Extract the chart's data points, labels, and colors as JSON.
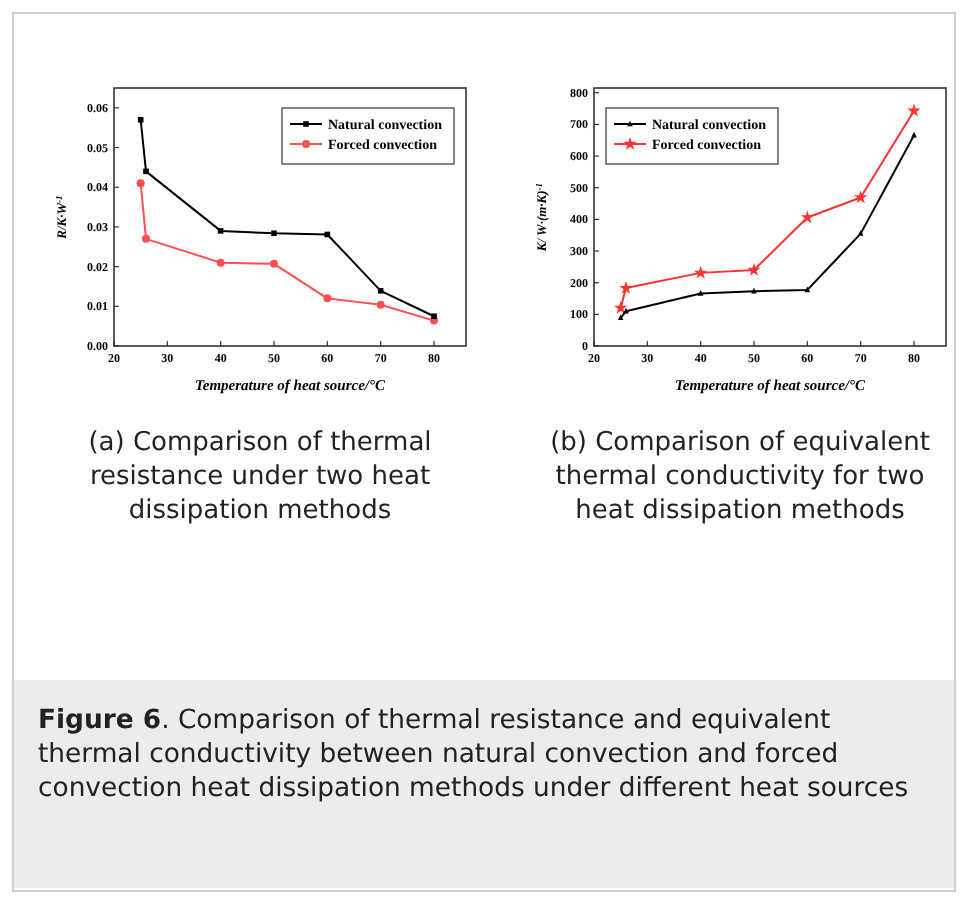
{
  "chart_data": [
    {
      "type": "line",
      "xlabel": "Temperature of heat source/°C",
      "ylabel": "R/K·W$^{-1}$",
      "x": [
        25,
        26,
        40,
        50,
        60,
        70,
        80
      ],
      "xlim": [
        20,
        86
      ],
      "xticks": [
        20,
        30,
        40,
        50,
        60,
        70,
        80
      ],
      "ylim": [
        0,
        0.065
      ],
      "yticks": [
        {
          "value": 0,
          "label": "0.00"
        },
        {
          "value": 0.01,
          "label": "0.01"
        },
        {
          "value": 0.02,
          "label": "0.02"
        },
        {
          "value": 0.03,
          "label": "0.03"
        },
        {
          "value": 0.04,
          "label": "0.04"
        },
        {
          "value": 0.05,
          "label": "0.05"
        },
        {
          "value": 0.06,
          "label": "0.06"
        }
      ],
      "legend": "top right",
      "grid": false,
      "series": [
        {
          "name": "Natural convection",
          "color": "#000000",
          "marker": "square",
          "values": [
            0.057,
            0.044,
            0.029,
            0.0284,
            0.0281,
            0.0139,
            0.0075
          ]
        },
        {
          "name": "Forced convection",
          "color": "#ff5050",
          "marker": "circle",
          "values": [
            0.041,
            0.027,
            0.021,
            0.0207,
            0.012,
            0.0104,
            0.0064
          ]
        }
      ],
      "annotations": [
        "(a) Comparison of thermal resistance under two heat dissipation methods"
      ]
    },
    {
      "type": "line",
      "xlabel": "Temperature of heat source/°C",
      "ylabel": "K/ W·(m·K)$^{-1}$",
      "x": [
        25,
        26,
        40,
        50,
        60,
        70,
        80
      ],
      "xlim": [
        20,
        86
      ],
      "xticks": [
        20,
        30,
        40,
        50,
        60,
        70,
        80
      ],
      "ylim": [
        0,
        815
      ],
      "yticks": [
        0,
        100,
        200,
        300,
        400,
        500,
        600,
        700,
        800
      ],
      "legend": "top left",
      "grid": false,
      "series": [
        {
          "name": "Natural convection",
          "color": "#000000",
          "marker": "triangle",
          "values": [
            89,
            110,
            166,
            173,
            177,
            355,
            666
          ]
        },
        {
          "name": "Forced convection",
          "color": "#ff3030",
          "marker": "star",
          "values": [
            120,
            183,
            231,
            240,
            406,
            469,
            743
          ]
        }
      ],
      "annotations": [
        "(b) Comparison of equivalent thermal conductivity for two heat dissipation methods"
      ]
    },
    {
      "type": "other",
      "title": "Figure 6",
      "annotations": [
        ". Comparison of thermal resistance and equivalent thermal conductivity between natural convection and forced convection heat dissipation methods under different heat sources"
      ]
    }
  ]
}
